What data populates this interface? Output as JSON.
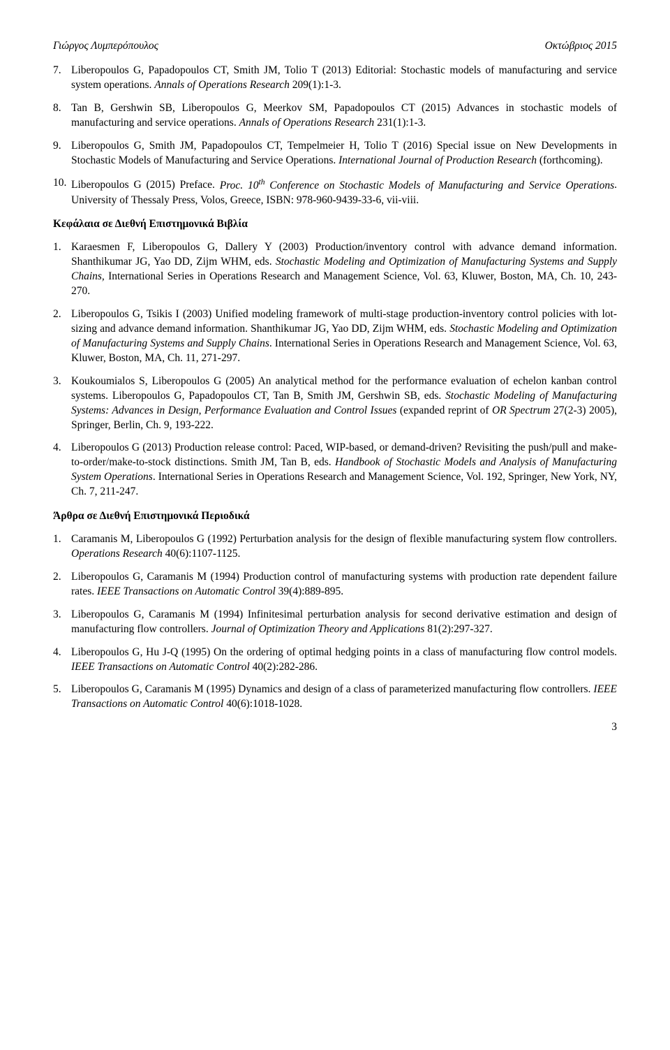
{
  "header": {
    "left": "Γιώργος Λυμπερόπουλος",
    "right": "Οκτώβριος 2015"
  },
  "top": [
    {
      "n": "7.",
      "html": "Liberopoulos G, Papadopoulos CT, Smith JM, Tolio T (2013) Editorial: Stochastic models of manufacturing and service system operations. <span class='ital'>Annals of Operations Research</span> 209(1):1-3."
    },
    {
      "n": "8.",
      "html": "Tan B, Gershwin SB, Liberopoulos G, Meerkov SM, Papadopoulos CT (2015) Advances in stochastic models of manufacturing and service operations. <span class='ital'>Annals of Operations Research</span> 231(1):1-3."
    },
    {
      "n": "9.",
      "html": "Liberopoulos G, Smith JM, Papadopoulos CT, Tempelmeier H, Tolio T (2016) Special issue on New Developments in Stochastic Models of Manufacturing and Service Operations. <span class='ital'>International Journal of Production Research</span> (forthcoming)."
    },
    {
      "n": "10.",
      "html": "Liberopoulos G (2015) Preface. <span class='ital'>Proc. 10<span class='sup'>th</span> Conference on Stochastic Models of Manufacturing and Service Operations</span>. University of Thessaly Press, Volos, Greece, ISBN: 978-960-9439-33-6, vii-viii."
    }
  ],
  "section1": "Κεφάλαια σε Διεθνή Επιστημονικά Βιβλία",
  "books": [
    {
      "n": "1.",
      "html": "Karaesmen F, Liberopoulos G, Dallery Y (2003) Production/inventory control with advance demand information. Shanthikumar JG, Yao DD, Zijm WHM, eds. <span class='ital'>Stochastic Modeling and Optimization of Manufacturing Systems and Supply Chains,</span> International Series in Operations Research and Management Science, Vol. 63, Kluwer, Boston, MA, Ch. 10, 243-270."
    },
    {
      "n": "2.",
      "html": "Liberopoulos G, Tsikis I (2003) Unified modeling framework of multi-stage production-inventory control policies with lot-sizing and advance demand information. Shanthikumar JG, Yao DD, Zijm WHM, eds. <span class='ital'>Stochastic Modeling and Optimization of Manufacturing Systems and Supply Chains</span>. International Series in Operations Research and Management Science, Vol. 63, Kluwer, Boston, MA, Ch. 11, 271-297."
    },
    {
      "n": "3.",
      "html": "Koukoumialos S, Liberopoulos G (2005) An analytical method for the performance evaluation of echelon kanban control systems. Liberopoulos G, Papadopoulos CT, Tan B, Smith JM, Gershwin SB, eds. <span class='ital'>Stochastic Modeling of Manufacturing Systems: Advances in Design, Performance Evaluation and Control Issues</span> (expanded reprint of <span class='ital'>OR Spectrum</span> 27(2-3) 2005), Springer, Berlin, Ch. 9, 193-222."
    },
    {
      "n": "4.",
      "html": "Liberopoulos G (2013) Production release control: Paced, WIP-based, or demand-driven? Revisiting the push/pull and make-to-order/make-to-stock distinctions. Smith JM, Tan B, eds. <span class='ital'>Handbook of Stochastic Models and Analysis of Manufacturing System Operations</span>. International Series in Operations Research and Management Science, Vol. 192, Springer, New York, NY, Ch. 7, 211-247."
    }
  ],
  "section2": "Άρθρα σε Διεθνή Επιστημονικά Περιοδικά",
  "journals": [
    {
      "n": "1.",
      "html": "Caramanis M, Liberopoulos G (1992) Perturbation analysis for the design of flexible manufacturing system flow controllers. <span class='ital'>Operations Research</span> 40(6):1107-1125."
    },
    {
      "n": "2.",
      "html": "Liberopoulos G, Caramanis M (1994) Production control of manufacturing systems with production rate dependent failure rates. <span class='ital'>IEEE Transactions on Automatic Control</span> 39(4):889-895."
    },
    {
      "n": "3.",
      "html": "Liberopoulos G, Caramanis M (1994) Infinitesimal perturbation analysis for second derivative estimation and design of manufacturing flow controllers. <span class='ital'>Journal of Optimization Theory and Applications</span> 81(2):297-327."
    },
    {
      "n": "4.",
      "html": "Liberopoulos G, Hu J-Q (1995) On the ordering of optimal hedging points in a class of manufacturing flow control models. <span class='ital'>IEEE Transactions on Automatic Control</span> 40(2):282-286."
    },
    {
      "n": "5.",
      "html": "Liberopoulos G, Caramanis M (1995) Dynamics and design of a class of parameterized manufacturing flow controllers. <span class='ital'>IEEE Transactions on Automatic Control</span> 40(6):1018-1028."
    }
  ],
  "page_number": "3"
}
